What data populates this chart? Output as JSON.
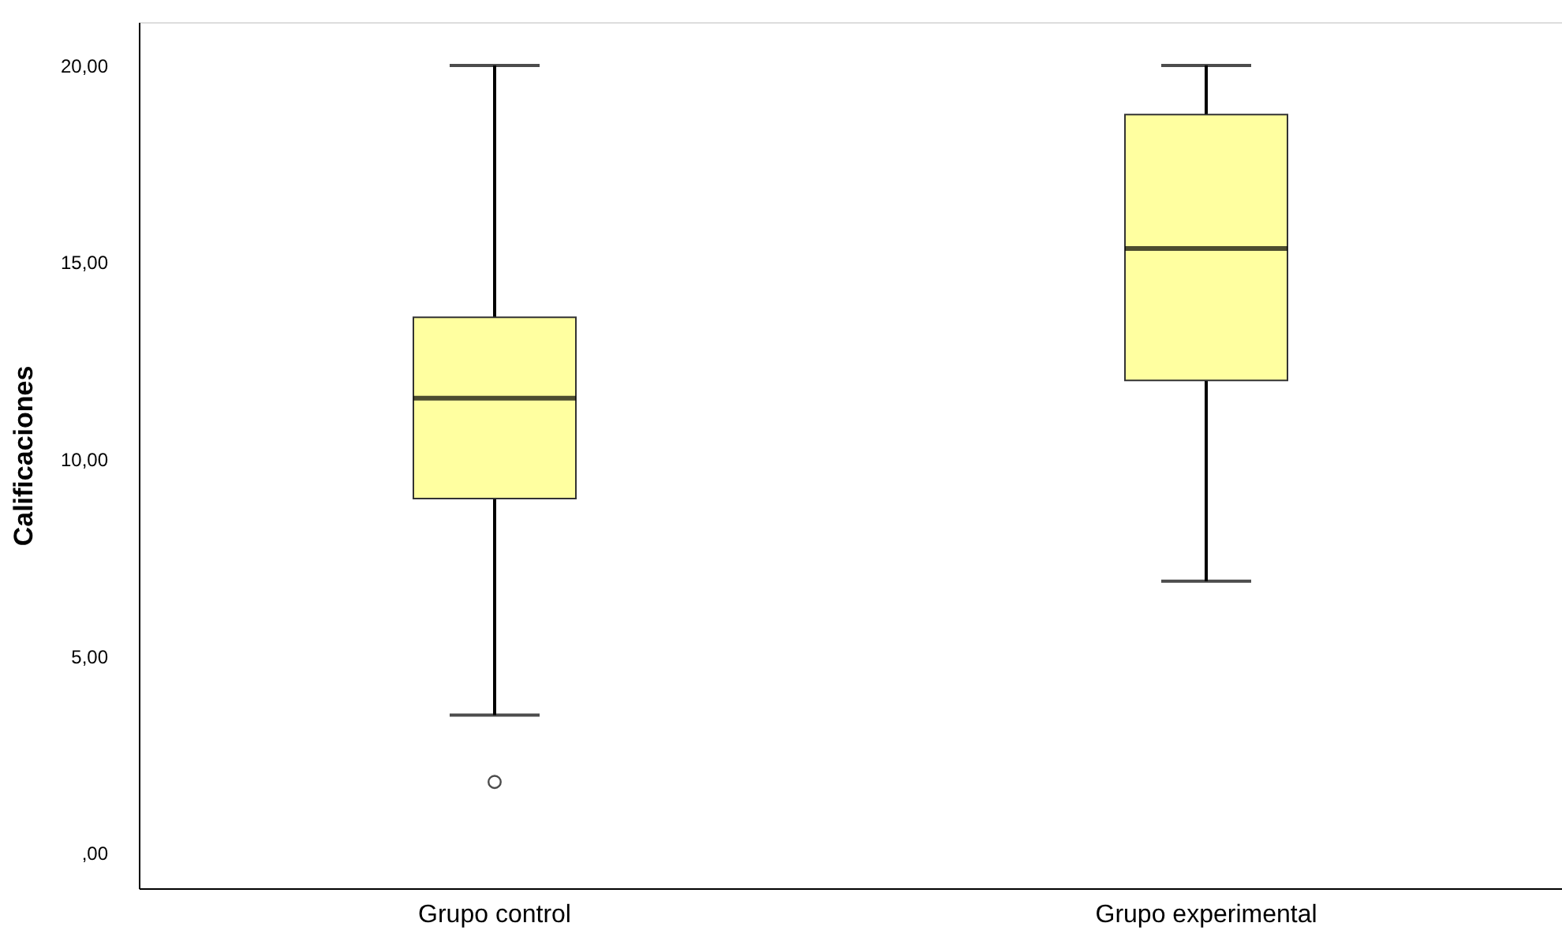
{
  "chart_data": {
    "type": "box",
    "ylabel": "Calificaciones",
    "categories": [
      "Grupo control",
      "Grupo experimental"
    ],
    "color": "#ffffa0",
    "boxes": [
      {
        "low": 3.5,
        "q1": 9.0,
        "median": 11.55,
        "q3": 13.6,
        "high": 20.0,
        "outliers": [
          1.8
        ]
      },
      {
        "low": 6.9,
        "q1": 12.0,
        "median": 15.35,
        "q3": 18.75,
        "high": 20.0
      }
    ],
    "ylim": [
      -0.9,
      21.1
    ],
    "yticks": [
      {
        "value": 0,
        "label": ",00"
      },
      {
        "value": 5,
        "label": "5,00"
      },
      {
        "value": 10,
        "label": "10,00"
      },
      {
        "value": 15,
        "label": "15,00"
      },
      {
        "value": 20,
        "label": "20,00"
      }
    ],
    "grid": false
  }
}
